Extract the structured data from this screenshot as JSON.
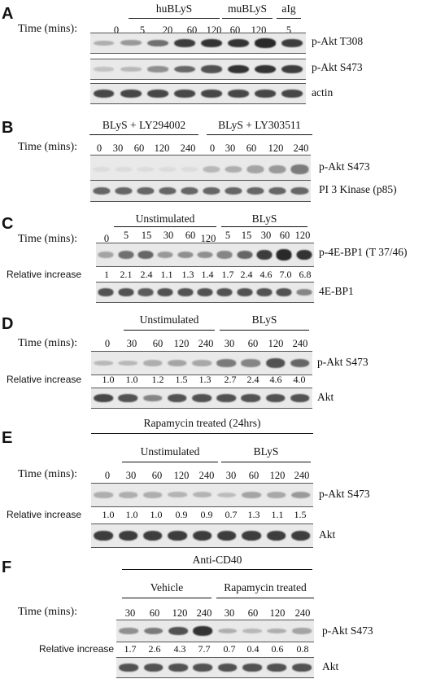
{
  "panels": [
    {
      "label": "A",
      "time_label": "Time (mins):",
      "groups": [
        "huBLyS",
        "muBLyS",
        "aIg"
      ],
      "times": [
        "0",
        "5",
        "20",
        "60",
        "120",
        "60",
        "120",
        "5"
      ],
      "blots": [
        {
          "label": "p-Akt T308",
          "intensity": [
            0.25,
            0.35,
            0.55,
            0.8,
            0.85,
            0.85,
            0.9,
            0.8
          ]
        },
        {
          "label": "p-Akt S473",
          "intensity": [
            0.15,
            0.2,
            0.4,
            0.6,
            0.7,
            0.85,
            0.85,
            0.8
          ]
        },
        {
          "label": "actin",
          "intensity": [
            0.75,
            0.75,
            0.75,
            0.75,
            0.75,
            0.75,
            0.75,
            0.75
          ]
        }
      ]
    },
    {
      "label": "B",
      "time_label": "Time (mins):",
      "groups": [
        "BLyS + LY294002",
        "BLyS + LY303511"
      ],
      "times": [
        "0",
        "30",
        "60",
        "120",
        "240",
        "0",
        "30",
        "60",
        "120",
        "240"
      ],
      "blots": [
        {
          "label": "p-Akt S473",
          "intensity": [
            0.03,
            0.03,
            0.03,
            0.03,
            0.03,
            0.2,
            0.25,
            0.3,
            0.35,
            0.5
          ]
        },
        {
          "label": "PI 3 Kinase (p85)",
          "intensity": [
            0.6,
            0.6,
            0.6,
            0.6,
            0.6,
            0.6,
            0.6,
            0.6,
            0.6,
            0.6
          ]
        }
      ]
    },
    {
      "label": "C",
      "time_label": "Time (mins):",
      "groups": [
        "Unstimulated",
        "BLyS"
      ],
      "times": [
        "0",
        "5",
        "15",
        "30",
        "60",
        "120",
        "5",
        "15",
        "30",
        "60",
        "120"
      ],
      "relative_label": "Relative increase",
      "relative": [
        "1",
        "2.1",
        "2.4",
        "1.1",
        "1.3",
        "1.4",
        "1.7",
        "2.4",
        "4.6",
        "7.0",
        "6.8"
      ],
      "blots": [
        {
          "label": "p-4E-BP1 (T 37/46)",
          "intensity": [
            0.3,
            0.55,
            0.6,
            0.35,
            0.4,
            0.4,
            0.45,
            0.6,
            0.8,
            0.9,
            0.85
          ]
        },
        {
          "label": "4E-BP1",
          "intensity": [
            0.7,
            0.7,
            0.65,
            0.7,
            0.7,
            0.7,
            0.7,
            0.7,
            0.7,
            0.7,
            0.45
          ]
        }
      ]
    },
    {
      "label": "D",
      "time_label": "Time (mins):",
      "groups": [
        "Unstimulated",
        "BLyS"
      ],
      "times": [
        "0",
        "30",
        "60",
        "120",
        "240",
        "30",
        "60",
        "120",
        "240"
      ],
      "relative_label": "Relative increase",
      "relative": [
        "1.0",
        "1.0",
        "1.2",
        "1.5",
        "1.3",
        "2.7",
        "2.4",
        "4.6",
        "4.0"
      ],
      "blots": [
        {
          "label": "p-Akt S473",
          "intensity": [
            0.2,
            0.2,
            0.25,
            0.3,
            0.28,
            0.5,
            0.45,
            0.7,
            0.6
          ]
        },
        {
          "label": "Akt",
          "intensity": [
            0.75,
            0.7,
            0.45,
            0.7,
            0.7,
            0.7,
            0.7,
            0.7,
            0.7
          ]
        }
      ]
    },
    {
      "label": "E",
      "time_label": "Time (mins):",
      "top_group": "Rapamycin treated (24hrs)",
      "groups": [
        "Unstimulated",
        "BLyS"
      ],
      "times": [
        "0",
        "30",
        "60",
        "120",
        "240",
        "30",
        "60",
        "120",
        "240"
      ],
      "relative_label": "Relative increase",
      "relative": [
        "1.0",
        "1.0",
        "1.0",
        "0.9",
        "0.9",
        "0.7",
        "1.3",
        "1.1",
        "1.5"
      ],
      "blots": [
        {
          "label": "p-Akt S473",
          "intensity": [
            0.25,
            0.25,
            0.25,
            0.22,
            0.22,
            0.18,
            0.3,
            0.28,
            0.35
          ]
        },
        {
          "label": "Akt",
          "intensity": [
            0.8,
            0.8,
            0.8,
            0.8,
            0.8,
            0.8,
            0.8,
            0.8,
            0.8
          ]
        }
      ]
    },
    {
      "label": "F",
      "time_label": "Time (mins):",
      "top_group": "Anti-CD40",
      "groups": [
        "Vehicle",
        "Rapamycin treated"
      ],
      "times": [
        "30",
        "60",
        "120",
        "240",
        "30",
        "60",
        "120",
        "240"
      ],
      "relative_label": "Relative increase",
      "relative": [
        "1.7",
        "2.6",
        "4.3",
        "7.7",
        "0.7",
        "0.4",
        "0.6",
        "0.8"
      ],
      "blots": [
        {
          "label": "p-Akt S473",
          "intensity": [
            0.4,
            0.5,
            0.7,
            0.85,
            0.25,
            0.2,
            0.25,
            0.3
          ]
        },
        {
          "label": "Akt",
          "intensity": [
            0.7,
            0.7,
            0.7,
            0.7,
            0.7,
            0.7,
            0.7,
            0.7
          ]
        }
      ]
    }
  ]
}
